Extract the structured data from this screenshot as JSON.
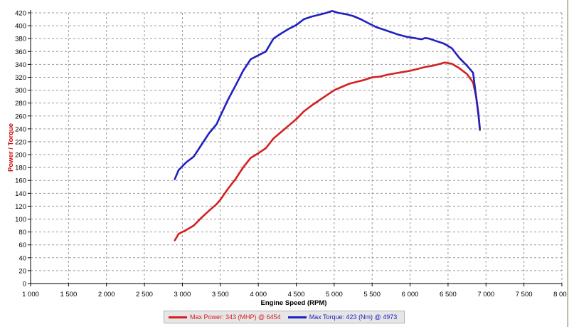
{
  "chart_data": {
    "type": "line",
    "xlabel": "Engine Speed (RPM)",
    "ylabel": "Power / Torque",
    "xlim": [
      1000,
      8000
    ],
    "ylim": [
      0,
      420
    ],
    "x_ticks": [
      "1 000",
      "1 500",
      "2 000",
      "2 500",
      "3 000",
      "3 500",
      "4 000",
      "4 500",
      "5 000",
      "5 500",
      "6 000",
      "6 500",
      "7 000",
      "7 500",
      "8 000"
    ],
    "y_ticks": [
      "0",
      "20",
      "40",
      "60",
      "80",
      "100",
      "120",
      "140",
      "160",
      "180",
      "200",
      "220",
      "240",
      "260",
      "280",
      "300",
      "320",
      "340",
      "360",
      "380",
      "400",
      "420"
    ],
    "grid": true,
    "legend_position": "bottom",
    "series": [
      {
        "name": "Max Power: 343 (MHP) @ 6454",
        "color": "#d42020",
        "x": [
          2900,
          2950,
          3050,
          3150,
          3250,
          3350,
          3450,
          3500,
          3600,
          3700,
          3800,
          3900,
          4000,
          4100,
          4200,
          4300,
          4400,
          4500,
          4600,
          4700,
          4800,
          4900,
          5000,
          5100,
          5200,
          5300,
          5400,
          5500,
          5600,
          5700,
          5800,
          5900,
          6000,
          6100,
          6200,
          6300,
          6400,
          6454,
          6550,
          6650,
          6750,
          6830,
          6870,
          6900,
          6920
        ],
        "y": [
          67,
          77,
          83,
          90,
          102,
          113,
          123,
          130,
          147,
          162,
          180,
          195,
          202,
          210,
          225,
          235,
          245,
          255,
          267,
          276,
          284,
          292,
          300,
          305,
          310,
          313,
          316,
          320,
          321,
          324,
          326,
          328,
          330,
          333,
          336,
          338,
          341,
          343,
          341,
          334,
          325,
          312,
          290,
          265,
          238
        ]
      },
      {
        "name": "Max Torque: 423 (Nm) @ 4973",
        "color": "#2020c0",
        "x": [
          2900,
          2950,
          3050,
          3150,
          3250,
          3350,
          3450,
          3500,
          3600,
          3700,
          3800,
          3900,
          4000,
          4100,
          4200,
          4300,
          4400,
          4500,
          4600,
          4700,
          4800,
          4900,
          4973,
          5050,
          5150,
          5250,
          5350,
          5450,
          5550,
          5650,
          5750,
          5850,
          5950,
          6050,
          6150,
          6200,
          6250,
          6350,
          6450,
          6550,
          6650,
          6750,
          6830,
          6870,
          6900,
          6920
        ],
        "y": [
          162,
          176,
          188,
          197,
          215,
          233,
          247,
          260,
          285,
          307,
          330,
          348,
          354,
          360,
          380,
          388,
          395,
          401,
          410,
          414,
          417,
          420,
          423,
          420,
          418,
          415,
          410,
          404,
          398,
          394,
          390,
          386,
          383,
          381,
          379,
          381,
          380,
          376,
          372,
          365,
          350,
          338,
          327,
          290,
          262,
          240
        ]
      }
    ]
  }
}
